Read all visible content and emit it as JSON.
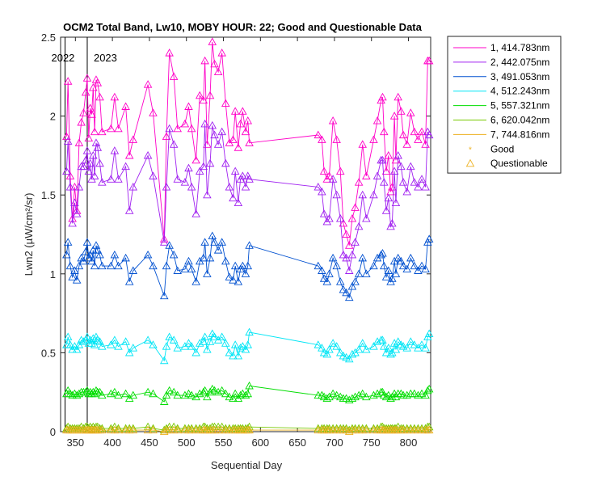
{
  "chart_data": {
    "type": "line",
    "title": "OCM2 Total Band, Lw10, MOBY HOUR: 22;  Good and Questionable Data",
    "xlabel": "Sequential Day",
    "ylabel": "Lwn2 (µW/cm²/sr)",
    "xlim": [
      330,
      830
    ],
    "ylim": [
      0,
      2.5
    ],
    "xticks": [
      350,
      400,
      450,
      500,
      550,
      600,
      650,
      700,
      750,
      800
    ],
    "yticks": [
      0,
      0.5,
      1,
      1.5,
      2,
      2.5
    ],
    "year_markers": [
      {
        "label": "2022",
        "x": 336
      },
      {
        "label": "2023",
        "x": 366
      }
    ],
    "legend_position": "outside-top-right",
    "legend_markers": [
      {
        "label": "Good",
        "marker": "star",
        "color": "#EDB120"
      },
      {
        "label": "Questionable",
        "marker": "triangle",
        "color": "#EDB120"
      }
    ],
    "x": [
      338,
      340,
      343,
      346,
      349,
      352,
      355,
      358,
      361,
      364,
      366,
      368,
      370,
      372,
      374,
      376,
      378,
      380,
      383,
      386,
      398,
      403,
      408,
      418,
      423,
      428,
      448,
      455,
      470,
      473,
      477,
      483,
      488,
      498,
      503,
      507,
      513,
      518,
      523,
      525,
      528,
      532,
      535,
      538,
      543,
      548,
      553,
      558,
      563,
      566,
      570,
      573,
      576,
      580,
      583,
      585,
      678,
      683,
      686,
      690,
      693,
      698,
      703,
      708,
      712,
      716,
      720,
      724,
      728,
      733,
      738,
      743,
      753,
      758,
      763,
      765,
      767,
      770,
      773,
      776,
      778,
      781,
      783,
      786,
      790,
      793,
      798,
      803,
      808,
      813,
      818,
      823,
      826,
      828
    ],
    "series": [
      {
        "name": "1, 414.783nm",
        "color": "#FF00C8",
        "values": [
          1.87,
          2.22,
          1.62,
          1.35,
          1.55,
          1.4,
          1.83,
          1.96,
          2.02,
          2.15,
          2.24,
          1.86,
          2.05,
          2.01,
          2.18,
          1.9,
          2.23,
          2.21,
          2.12,
          1.9,
          1.92,
          2.12,
          1.92,
          2.06,
          1.75,
          1.85,
          2.2,
          2.02,
          1.22,
          1.87,
          2.4,
          2.25,
          1.92,
          1.95,
          2.06,
          1.92,
          1.72,
          2.13,
          2.1,
          2.35,
          1.82,
          2.13,
          2.47,
          2.33,
          2.28,
          2.4,
          2.08,
          1.83,
          1.85,
          2.03,
          1.8,
          1.95,
          2.03,
          1.9,
          1.97,
          1.83,
          1.88,
          1.85,
          1.65,
          1.6,
          1.62,
          1.97,
          1.85,
          1.65,
          1.32,
          1.25,
          1.18,
          1.35,
          1.42,
          1.58,
          1.82,
          1.62,
          1.85,
          1.97,
          2.1,
          2.12,
          1.9,
          1.65,
          1.75,
          1.52,
          1.55,
          2.0,
          1.72,
          2.12,
          2.03,
          1.88,
          1.82,
          2.02,
          1.9,
          1.85,
          1.9,
          1.82,
          2.35,
          2.35
        ]
      },
      {
        "name": "2, 442.075nm",
        "color": "#A020F0",
        "values": [
          1.65,
          1.84,
          1.55,
          1.32,
          1.45,
          1.38,
          1.55,
          1.68,
          1.68,
          1.72,
          1.78,
          1.65,
          1.7,
          1.6,
          1.75,
          1.62,
          1.83,
          1.8,
          1.7,
          1.58,
          1.6,
          1.78,
          1.6,
          1.68,
          1.4,
          1.55,
          1.75,
          1.62,
          1.2,
          1.55,
          1.92,
          1.82,
          1.6,
          1.58,
          1.67,
          1.55,
          1.38,
          1.65,
          1.68,
          1.95,
          1.5,
          1.7,
          1.94,
          1.88,
          1.82,
          1.9,
          1.7,
          1.55,
          1.48,
          1.65,
          1.45,
          1.6,
          1.62,
          1.55,
          1.62,
          1.6,
          1.55,
          1.52,
          1.38,
          1.33,
          1.35,
          1.6,
          1.5,
          1.35,
          1.12,
          1.1,
          1.02,
          1.12,
          1.2,
          1.3,
          1.5,
          1.35,
          1.5,
          1.62,
          1.72,
          1.72,
          1.58,
          1.4,
          1.48,
          1.3,
          1.32,
          1.65,
          1.45,
          1.75,
          1.68,
          1.58,
          1.52,
          1.68,
          1.58,
          1.55,
          1.6,
          1.55,
          1.9,
          1.88
        ]
      },
      {
        "name": "3, 491.053nm",
        "color": "#0050D0",
        "values": [
          1.12,
          1.2,
          1.05,
          0.98,
          1.02,
          0.96,
          1.05,
          1.1,
          1.08,
          1.14,
          1.2,
          1.1,
          1.12,
          1.08,
          1.15,
          1.05,
          1.18,
          1.15,
          1.12,
          1.05,
          1.05,
          1.12,
          1.05,
          1.1,
          0.95,
          1.02,
          1.12,
          1.05,
          0.86,
          1.05,
          1.18,
          1.12,
          1.02,
          1.03,
          1.08,
          1.03,
          0.95,
          1.08,
          1.1,
          1.2,
          1.0,
          1.1,
          1.24,
          1.2,
          1.15,
          1.2,
          1.08,
          0.98,
          0.96,
          1.05,
          0.95,
          1.03,
          1.05,
          1.0,
          1.05,
          1.18,
          1.05,
          1.02,
          0.97,
          0.95,
          1.0,
          1.1,
          1.05,
          0.95,
          0.9,
          0.88,
          0.85,
          0.92,
          0.95,
          1.0,
          1.1,
          1.0,
          1.05,
          1.1,
          1.12,
          1.13,
          1.05,
          0.98,
          1.02,
          0.95,
          0.97,
          1.08,
          1.0,
          1.1,
          1.08,
          1.05,
          1.03,
          1.1,
          1.05,
          1.02,
          1.05,
          1.03,
          1.2,
          1.22
        ]
      },
      {
        "name": "4, 512.243nm",
        "color": "#00E5F5",
        "values": [
          0.55,
          0.6,
          0.55,
          0.52,
          0.54,
          0.52,
          0.55,
          0.58,
          0.57,
          0.58,
          0.6,
          0.56,
          0.58,
          0.56,
          0.59,
          0.55,
          0.6,
          0.58,
          0.57,
          0.54,
          0.55,
          0.58,
          0.54,
          0.57,
          0.5,
          0.53,
          0.58,
          0.55,
          0.45,
          0.54,
          0.6,
          0.58,
          0.53,
          0.54,
          0.56,
          0.54,
          0.5,
          0.56,
          0.57,
          0.6,
          0.52,
          0.57,
          0.62,
          0.6,
          0.58,
          0.6,
          0.56,
          0.5,
          0.48,
          0.55,
          0.48,
          0.53,
          0.54,
          0.52,
          0.55,
          0.63,
          0.55,
          0.53,
          0.5,
          0.49,
          0.52,
          0.56,
          0.54,
          0.5,
          0.48,
          0.47,
          0.46,
          0.49,
          0.5,
          0.52,
          0.56,
          0.52,
          0.54,
          0.57,
          0.58,
          0.58,
          0.54,
          0.5,
          0.53,
          0.49,
          0.5,
          0.56,
          0.52,
          0.57,
          0.55,
          0.54,
          0.53,
          0.57,
          0.55,
          0.53,
          0.55,
          0.53,
          0.6,
          0.62
        ]
      },
      {
        "name": "5, 557.321nm",
        "color": "#00DD00",
        "values": [
          0.24,
          0.26,
          0.24,
          0.23,
          0.24,
          0.23,
          0.24,
          0.25,
          0.25,
          0.25,
          0.26,
          0.24,
          0.25,
          0.24,
          0.25,
          0.24,
          0.26,
          0.25,
          0.25,
          0.23,
          0.24,
          0.25,
          0.23,
          0.24,
          0.21,
          0.23,
          0.25,
          0.24,
          0.19,
          0.23,
          0.26,
          0.25,
          0.23,
          0.23,
          0.24,
          0.23,
          0.22,
          0.24,
          0.25,
          0.26,
          0.22,
          0.25,
          0.27,
          0.26,
          0.25,
          0.26,
          0.24,
          0.22,
          0.21,
          0.24,
          0.21,
          0.23,
          0.24,
          0.23,
          0.24,
          0.29,
          0.23,
          0.23,
          0.22,
          0.21,
          0.22,
          0.24,
          0.23,
          0.22,
          0.21,
          0.21,
          0.2,
          0.21,
          0.22,
          0.23,
          0.24,
          0.22,
          0.23,
          0.24,
          0.25,
          0.25,
          0.23,
          0.22,
          0.23,
          0.21,
          0.22,
          0.24,
          0.22,
          0.24,
          0.24,
          0.23,
          0.23,
          0.24,
          0.24,
          0.23,
          0.24,
          0.23,
          0.26,
          0.27
        ]
      },
      {
        "name": "6, 620.042nm",
        "color": "#77C800",
        "values": [
          0.02,
          0.03,
          0.02,
          0.02,
          0.02,
          0.02,
          0.02,
          0.03,
          0.02,
          0.03,
          0.03,
          0.02,
          0.03,
          0.02,
          0.03,
          0.02,
          0.03,
          0.03,
          0.02,
          0.02,
          0.02,
          0.03,
          0.02,
          0.02,
          0.02,
          0.02,
          0.03,
          0.02,
          0.01,
          0.02,
          0.03,
          0.03,
          0.02,
          0.02,
          0.02,
          0.02,
          0.02,
          0.02,
          0.03,
          0.03,
          0.02,
          0.02,
          0.03,
          0.03,
          0.03,
          0.03,
          0.02,
          0.02,
          0.02,
          0.02,
          0.02,
          0.02,
          0.02,
          0.02,
          0.02,
          0.03,
          0.02,
          0.02,
          0.02,
          0.02,
          0.02,
          0.02,
          0.02,
          0.02,
          0.02,
          0.02,
          0.01,
          0.02,
          0.02,
          0.02,
          0.02,
          0.02,
          0.02,
          0.02,
          0.03,
          0.03,
          0.02,
          0.02,
          0.02,
          0.02,
          0.02,
          0.02,
          0.02,
          0.03,
          0.02,
          0.02,
          0.02,
          0.02,
          0.02,
          0.02,
          0.02,
          0.02,
          0.03,
          0.03
        ]
      },
      {
        "name": "7, 744.816nm",
        "color": "#EDB120",
        "values": [
          0.01,
          0.01,
          0.01,
          0.01,
          0.01,
          0.01,
          0.01,
          0.01,
          0.01,
          0.01,
          0.01,
          0.01,
          0.01,
          0.01,
          0.01,
          0.01,
          0.01,
          0.01,
          0.01,
          0.01,
          0.01,
          0.01,
          0.01,
          0.01,
          0.01,
          0.01,
          0.01,
          0.01,
          0.0,
          0.01,
          0.01,
          0.01,
          0.01,
          0.01,
          0.01,
          0.01,
          0.01,
          0.01,
          0.01,
          0.01,
          0.01,
          0.01,
          0.01,
          0.01,
          0.01,
          0.01,
          0.01,
          0.01,
          0.01,
          0.01,
          0.01,
          0.01,
          0.01,
          0.01,
          0.01,
          0.01,
          0.01,
          0.01,
          0.01,
          0.01,
          0.01,
          0.01,
          0.01,
          0.01,
          0.01,
          0.01,
          0.0,
          0.01,
          0.01,
          0.01,
          0.01,
          0.01,
          0.01,
          0.01,
          0.01,
          0.01,
          0.01,
          0.01,
          0.01,
          0.01,
          0.01,
          0.01,
          0.01,
          0.01,
          0.01,
          0.01,
          0.01,
          0.01,
          0.01,
          0.01,
          0.01,
          0.01,
          0.01,
          0.01
        ]
      }
    ]
  }
}
